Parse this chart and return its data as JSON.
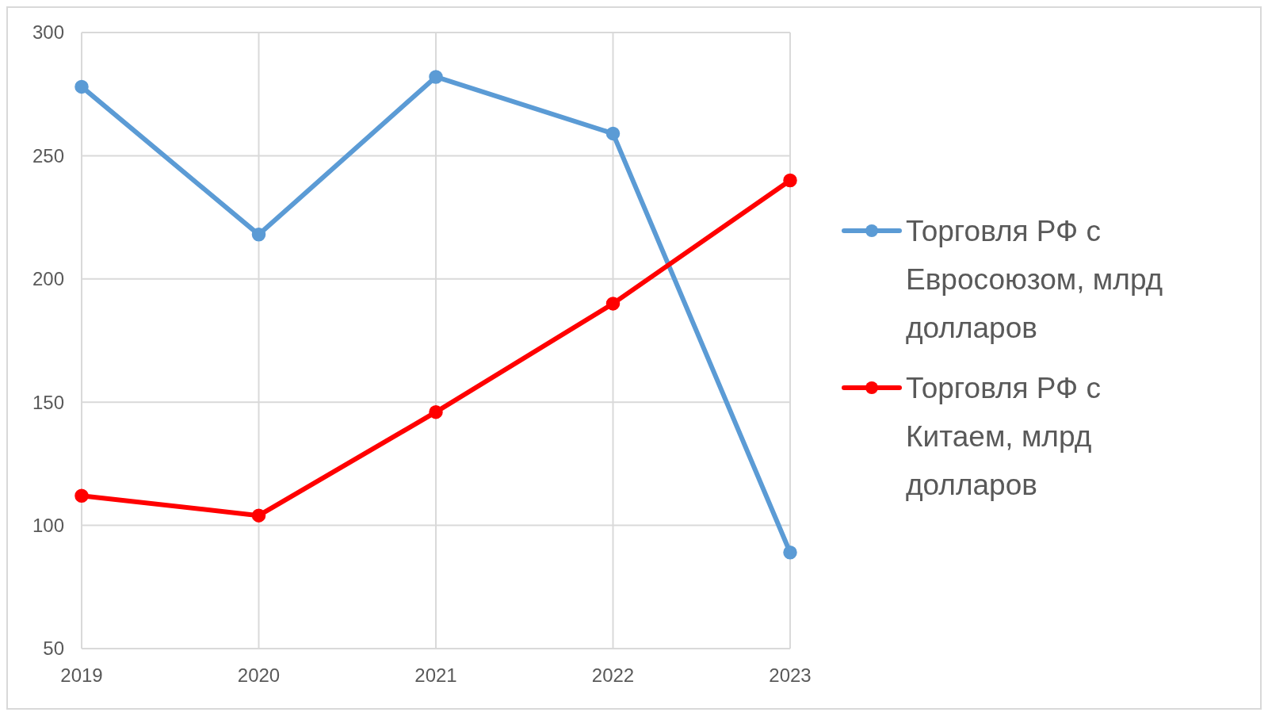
{
  "chart_data": {
    "type": "line",
    "x": [
      2019,
      2020,
      2021,
      2022,
      2023
    ],
    "xlim": [
      2019,
      2023
    ],
    "xticks": [
      2019,
      2020,
      2021,
      2022,
      2023
    ],
    "ylim": [
      50,
      300
    ],
    "yticks": [
      50,
      100,
      150,
      200,
      250,
      300
    ],
    "grid": true,
    "legend": "right",
    "marker": "circle",
    "line_style": "solid",
    "series": [
      {
        "name": "Торговля РФ с Евросоюзом, млрд долларов",
        "color": "#5b9bd5",
        "values": [
          278,
          218,
          282,
          259,
          89
        ]
      },
      {
        "name": "Торговля РФ с Китаем, млрд долларов",
        "color": "#ff0000",
        "values": [
          112,
          104,
          146,
          190,
          240
        ]
      }
    ]
  }
}
